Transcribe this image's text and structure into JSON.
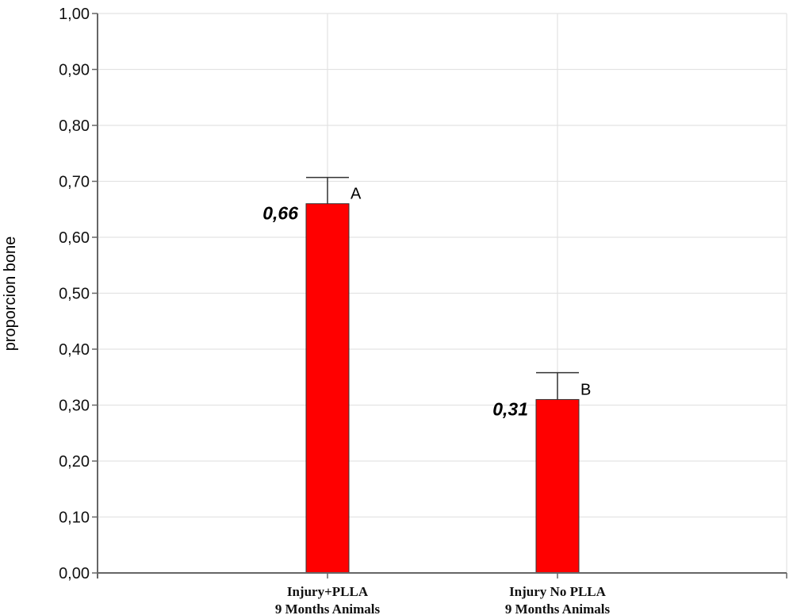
{
  "chart_data": {
    "type": "bar",
    "title": "",
    "xlabel": "",
    "ylabel": "proporcion bone",
    "ylim": [
      0,
      1.0
    ],
    "yticks": [
      "0,00",
      "0,10",
      "0,20",
      "0,30",
      "0,40",
      "0,50",
      "0,60",
      "0,70",
      "0,80",
      "0,90",
      "1,00"
    ],
    "grid": true,
    "categories": [
      [
        "Injury+PLLA",
        "9 Months Animals"
      ],
      [
        "Injury No PLLA",
        "9 Months Animals"
      ]
    ],
    "values": [
      0.66,
      0.31
    ],
    "error_upper": [
      0.047,
      0.048
    ],
    "value_labels": [
      "0,66",
      "0,31"
    ],
    "group_letters": [
      "A",
      "B"
    ],
    "bar_color": "#ff0000",
    "legend": null
  }
}
